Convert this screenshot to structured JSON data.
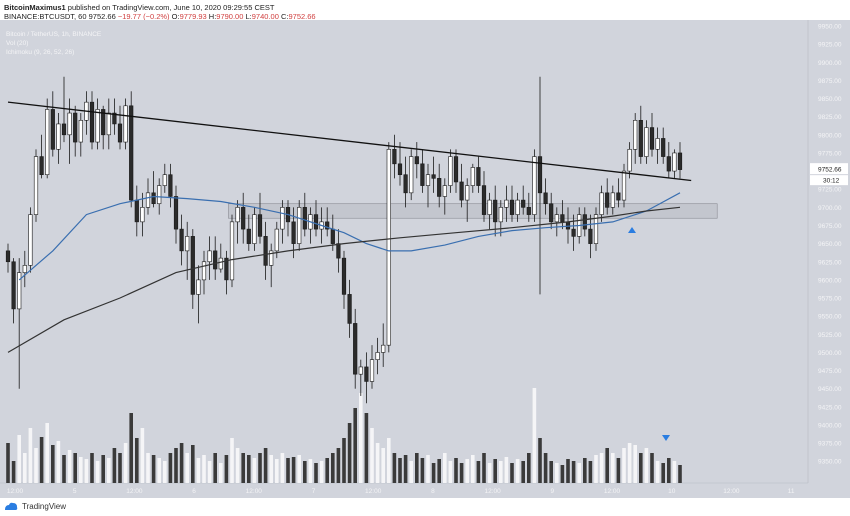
{
  "header": {
    "author": "BitcoinMaximus1",
    "published": "published on TradingView.com, June 10, 2020 09:29:55 CEST",
    "symbol": "BINANCE:BTCUSDT, 60",
    "last": "9752.66",
    "change": "−19.77 (−0.2%)",
    "o_label": "O:",
    "o": "9779.93",
    "h_label": "H:",
    "h": "9790.00",
    "l_label": "L:",
    "l": "9740.00",
    "c_label": "C:",
    "c": "9752.66"
  },
  "legend": {
    "pair": "Bitcoin / TetherUS, 1h, BINANCE",
    "vol": "Vol (20)",
    "ichimoku": "Ichimoku (9, 26, 52, 26)"
  },
  "footer": {
    "brand": "TradingView"
  },
  "colors": {
    "background": "#d1d4dc",
    "candle_up": "#ffffff",
    "candle_down": "#2b2b2b",
    "trendline": "#111111",
    "ma_blue": "#3a6fb0",
    "ma_dark": "#333333",
    "support_zone": "#c3c6ce",
    "price_tag": "#ffffff"
  },
  "chart_data": {
    "type": "candlestick",
    "yaxis": {
      "range": [
        9320,
        9950
      ],
      "ticks": [
        "9950.00",
        "9925.00",
        "9900.00",
        "9875.00",
        "9850.00",
        "9825.00",
        "9800.00",
        "9775.00",
        "9750.00",
        "9725.00",
        "9700.00",
        "9675.00",
        "9650.00",
        "9625.00",
        "9600.00",
        "9575.00",
        "9550.00",
        "9525.00",
        "9500.00",
        "9475.00",
        "9450.00",
        "9425.00",
        "9400.00",
        "9375.00",
        "9350.00"
      ]
    },
    "xaxis": {
      "ticks": [
        "12:00",
        "5",
        "12:00",
        "6",
        "12:00",
        "7",
        "12:00",
        "8",
        "12:00",
        "9",
        "12:00",
        "10",
        "12:00",
        "11"
      ]
    },
    "current_price": "9752.66",
    "countdown": "30:12",
    "trendline": {
      "start": [
        0,
        9845
      ],
      "end": [
        122,
        9737
      ]
    },
    "support_zone": {
      "from_bar": 40,
      "to_bar": 126,
      "low": 9685,
      "high": 9705
    },
    "candles": [
      [
        9640,
        9650,
        9610,
        9625
      ],
      [
        9625,
        9630,
        9540,
        9560
      ],
      [
        9560,
        9630,
        9450,
        9610
      ],
      [
        9610,
        9640,
        9590,
        9620
      ],
      [
        9620,
        9700,
        9610,
        9690
      ],
      [
        9690,
        9780,
        9680,
        9770
      ],
      [
        9770,
        9800,
        9740,
        9745
      ],
      [
        9745,
        9850,
        9740,
        9835
      ],
      [
        9835,
        9860,
        9770,
        9780
      ],
      [
        9780,
        9830,
        9760,
        9815
      ],
      [
        9815,
        9880,
        9790,
        9800
      ],
      [
        9800,
        9850,
        9760,
        9830
      ],
      [
        9830,
        9840,
        9770,
        9790
      ],
      [
        9790,
        9830,
        9770,
        9820
      ],
      [
        9820,
        9860,
        9800,
        9845
      ],
      [
        9845,
        9860,
        9780,
        9790
      ],
      [
        9790,
        9850,
        9780,
        9835
      ],
      [
        9835,
        9840,
        9780,
        9800
      ],
      [
        9800,
        9850,
        9780,
        9830
      ],
      [
        9830,
        9850,
        9800,
        9815
      ],
      [
        9815,
        9840,
        9780,
        9790
      ],
      [
        9790,
        9850,
        9780,
        9840
      ],
      [
        9840,
        9860,
        9700,
        9710
      ],
      [
        9710,
        9730,
        9660,
        9680
      ],
      [
        9680,
        9720,
        9660,
        9700
      ],
      [
        9700,
        9740,
        9690,
        9720
      ],
      [
        9720,
        9750,
        9700,
        9705
      ],
      [
        9705,
        9740,
        9690,
        9730
      ],
      [
        9730,
        9760,
        9720,
        9745
      ],
      [
        9745,
        9760,
        9700,
        9715
      ],
      [
        9715,
        9730,
        9650,
        9670
      ],
      [
        9670,
        9690,
        9620,
        9640
      ],
      [
        9640,
        9680,
        9600,
        9660
      ],
      [
        9660,
        9670,
        9560,
        9580
      ],
      [
        9580,
        9620,
        9540,
        9600
      ],
      [
        9600,
        9640,
        9580,
        9625
      ],
      [
        9625,
        9660,
        9600,
        9640
      ],
      [
        9640,
        9660,
        9600,
        9615
      ],
      [
        9615,
        9650,
        9610,
        9630
      ],
      [
        9630,
        9640,
        9580,
        9600
      ],
      [
        9600,
        9690,
        9590,
        9680
      ],
      [
        9680,
        9710,
        9650,
        9700
      ],
      [
        9700,
        9720,
        9650,
        9670
      ],
      [
        9670,
        9690,
        9640,
        9650
      ],
      [
        9650,
        9700,
        9640,
        9690
      ],
      [
        9690,
        9720,
        9650,
        9660
      ],
      [
        9660,
        9680,
        9600,
        9620
      ],
      [
        9620,
        9650,
        9590,
        9640
      ],
      [
        9640,
        9680,
        9630,
        9670
      ],
      [
        9670,
        9710,
        9650,
        9700
      ],
      [
        9700,
        9710,
        9660,
        9680
      ],
      [
        9680,
        9700,
        9630,
        9650
      ],
      [
        9650,
        9710,
        9640,
        9700
      ],
      [
        9700,
        9720,
        9660,
        9670
      ],
      [
        9670,
        9700,
        9650,
        9690
      ],
      [
        9690,
        9710,
        9660,
        9670
      ],
      [
        9670,
        9700,
        9650,
        9680
      ],
      [
        9680,
        9700,
        9660,
        9670
      ],
      [
        9670,
        9690,
        9640,
        9650
      ],
      [
        9650,
        9670,
        9610,
        9630
      ],
      [
        9630,
        9640,
        9560,
        9580
      ],
      [
        9580,
        9600,
        9520,
        9540
      ],
      [
        9540,
        9560,
        9450,
        9470
      ],
      [
        9470,
        9490,
        9440,
        9480
      ],
      [
        9480,
        9500,
        9430,
        9460
      ],
      [
        9460,
        9510,
        9450,
        9490
      ],
      [
        9490,
        9520,
        9470,
        9500
      ],
      [
        9500,
        9540,
        9480,
        9510
      ],
      [
        9510,
        9790,
        9500,
        9780
      ],
      [
        9780,
        9800,
        9740,
        9760
      ],
      [
        9760,
        9790,
        9730,
        9745
      ],
      [
        9745,
        9770,
        9700,
        9720
      ],
      [
        9720,
        9780,
        9710,
        9770
      ],
      [
        9770,
        9790,
        9740,
        9760
      ],
      [
        9760,
        9780,
        9720,
        9730
      ],
      [
        9730,
        9760,
        9700,
        9745
      ],
      [
        9745,
        9770,
        9720,
        9740
      ],
      [
        9740,
        9760,
        9700,
        9715
      ],
      [
        9715,
        9740,
        9690,
        9730
      ],
      [
        9730,
        9780,
        9720,
        9770
      ],
      [
        9770,
        9780,
        9720,
        9735
      ],
      [
        9735,
        9760,
        9700,
        9710
      ],
      [
        9710,
        9740,
        9680,
        9730
      ],
      [
        9730,
        9760,
        9720,
        9755
      ],
      [
        9755,
        9770,
        9720,
        9730
      ],
      [
        9730,
        9750,
        9680,
        9690
      ],
      [
        9690,
        9720,
        9670,
        9710
      ],
      [
        9710,
        9730,
        9660,
        9680
      ],
      [
        9680,
        9710,
        9660,
        9700
      ],
      [
        9700,
        9730,
        9680,
        9710
      ],
      [
        9710,
        9730,
        9680,
        9690
      ],
      [
        9690,
        9720,
        9680,
        9710
      ],
      [
        9710,
        9730,
        9690,
        9700
      ],
      [
        9700,
        9720,
        9680,
        9690
      ],
      [
        9690,
        9780,
        9680,
        9770
      ],
      [
        9770,
        9880,
        9580,
        9720
      ],
      [
        9720,
        9740,
        9690,
        9705
      ],
      [
        9705,
        9720,
        9670,
        9680
      ],
      [
        9680,
        9700,
        9660,
        9690
      ],
      [
        9690,
        9710,
        9670,
        9680
      ],
      [
        9680,
        9700,
        9650,
        9670
      ],
      [
        9670,
        9690,
        9640,
        9660
      ],
      [
        9660,
        9700,
        9650,
        9690
      ],
      [
        9690,
        9700,
        9660,
        9670
      ],
      [
        9670,
        9690,
        9630,
        9650
      ],
      [
        9650,
        9700,
        9640,
        9690
      ],
      [
        9690,
        9730,
        9680,
        9720
      ],
      [
        9720,
        9740,
        9690,
        9700
      ],
      [
        9700,
        9730,
        9690,
        9720
      ],
      [
        9720,
        9740,
        9700,
        9710
      ],
      [
        9710,
        9760,
        9700,
        9750
      ],
      [
        9750,
        9790,
        9740,
        9780
      ],
      [
        9780,
        9830,
        9760,
        9820
      ],
      [
        9820,
        9840,
        9760,
        9770
      ],
      [
        9770,
        9820,
        9760,
        9810
      ],
      [
        9810,
        9830,
        9770,
        9780
      ],
      [
        9780,
        9810,
        9760,
        9795
      ],
      [
        9795,
        9810,
        9760,
        9770
      ],
      [
        9770,
        9790,
        9740,
        9750
      ],
      [
        9750,
        9780,
        9740,
        9775
      ],
      [
        9775,
        9790,
        9740,
        9752
      ]
    ],
    "volume": [
      40,
      22,
      48,
      30,
      55,
      35,
      46,
      60,
      38,
      42,
      28,
      33,
      30,
      26,
      24,
      30,
      22,
      28,
      25,
      35,
      30,
      40,
      70,
      45,
      55,
      30,
      28,
      25,
      22,
      30,
      35,
      40,
      30,
      38,
      25,
      28,
      22,
      30,
      20,
      28,
      45,
      35,
      30,
      28,
      25,
      30,
      35,
      28,
      24,
      30,
      25,
      26,
      28,
      22,
      24,
      20,
      22,
      25,
      30,
      35,
      45,
      60,
      75,
      90,
      70,
      55,
      40,
      35,
      45,
      30,
      25,
      28,
      22,
      30,
      25,
      28,
      20,
      24,
      30,
      22,
      25,
      20,
      24,
      28,
      22,
      30,
      20,
      24,
      22,
      26,
      20,
      24,
      22,
      30,
      95,
      45,
      30,
      22,
      20,
      18,
      24,
      22,
      20,
      25,
      22,
      28,
      30,
      35,
      30,
      25,
      35,
      40,
      38,
      30,
      35,
      30,
      22,
      20,
      25,
      22,
      18
    ],
    "series": [
      {
        "name": "",
        "type": "ma",
        "points": [
          [
            2,
            9600
          ],
          [
            8,
            9640
          ],
          [
            14,
            9690
          ],
          [
            20,
            9705
          ],
          [
            26,
            9715
          ],
          [
            32,
            9712
          ],
          [
            38,
            9708
          ],
          [
            44,
            9700
          ],
          [
            50,
            9690
          ],
          [
            56,
            9675
          ],
          [
            60,
            9665
          ],
          [
            64,
            9650
          ],
          [
            68,
            9640
          ],
          [
            72,
            9640
          ],
          [
            78,
            9648
          ],
          [
            84,
            9660
          ],
          [
            90,
            9668
          ],
          [
            96,
            9672
          ],
          [
            102,
            9675
          ],
          [
            108,
            9680
          ],
          [
            114,
            9695
          ],
          [
            120,
            9720
          ]
        ]
      },
      {
        "name": "",
        "type": "ma",
        "points": [
          [
            0,
            9500
          ],
          [
            10,
            9545
          ],
          [
            20,
            9575
          ],
          [
            30,
            9610
          ],
          [
            40,
            9628
          ],
          [
            50,
            9640
          ],
          [
            60,
            9650
          ],
          [
            70,
            9658
          ],
          [
            80,
            9665
          ],
          [
            90,
            9672
          ],
          [
            100,
            9680
          ],
          [
            108,
            9688
          ],
          [
            114,
            9695
          ],
          [
            120,
            9700
          ]
        ]
      }
    ]
  }
}
